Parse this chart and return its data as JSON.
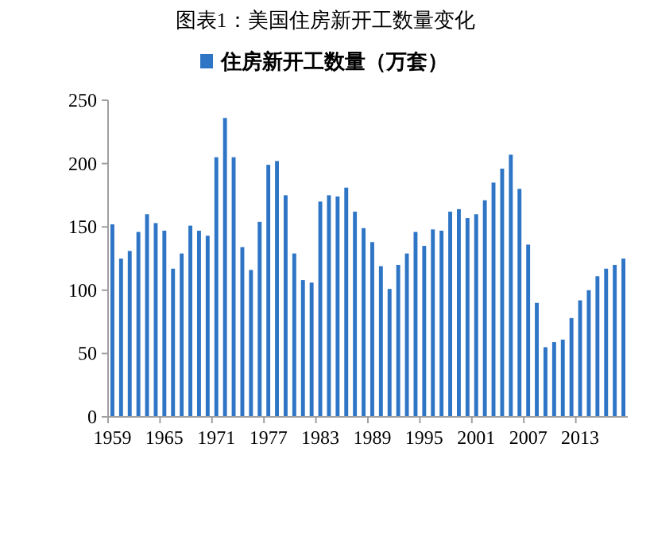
{
  "chart_data": {
    "type": "bar",
    "title": "图表1：美国住房新开工数量变化",
    "categories": [
      "1959",
      null,
      null,
      null,
      null,
      null,
      "1965",
      null,
      null,
      null,
      null,
      null,
      "1971",
      null,
      null,
      null,
      null,
      null,
      "1977",
      null,
      null,
      null,
      null,
      null,
      "1983",
      null,
      null,
      null,
      null,
      null,
      "1989",
      null,
      null,
      null,
      null,
      null,
      "1995",
      null,
      null,
      null,
      null,
      null,
      "2001",
      null,
      null,
      null,
      null,
      null,
      "2007",
      null,
      null,
      null,
      null,
      null,
      "2013",
      null,
      null,
      null,
      null,
      null
    ],
    "series": [
      {
        "name": "住房新开工数量（万套）",
        "color": "#2e75c6",
        "values": [
          152,
          125,
          131,
          146,
          160,
          153,
          147,
          117,
          129,
          151,
          147,
          143,
          205,
          236,
          205,
          134,
          116,
          154,
          199,
          202,
          175,
          129,
          108,
          106,
          170,
          175,
          174,
          181,
          162,
          149,
          138,
          119,
          101,
          120,
          129,
          146,
          135,
          148,
          147,
          162,
          164,
          157,
          160,
          171,
          185,
          196,
          207,
          180,
          136,
          90,
          55,
          59,
          61,
          78,
          92,
          100,
          111,
          117,
          120,
          125
        ]
      }
    ],
    "ylim": [
      0,
      250
    ],
    "yticks": [
      0,
      50,
      100,
      150,
      200,
      250
    ],
    "grid": false,
    "legend": "top"
  }
}
